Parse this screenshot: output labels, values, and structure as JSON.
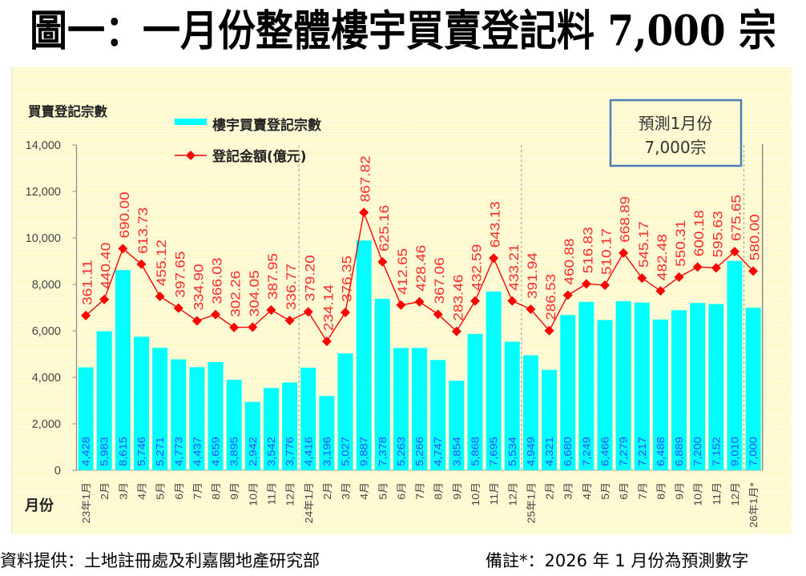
{
  "title": "圖一：一月份整體樓宇買賣登記料 7,000 宗",
  "footer": {
    "source": "資料提供：土地註冊處及利嘉閣地產研究部",
    "note": "備註*：2026 年 1 月份為預測數字"
  },
  "annotation": {
    "line1": "預測1月份",
    "line2": "7,000宗"
  },
  "colors": {
    "bar": "#00ffff",
    "bar_label": "#2f4dff",
    "line": "#ff0000",
    "line_label": "#ff2a2a",
    "annotation_border": "#4a7ebb",
    "axis": "#8a8a8a"
  },
  "chart_data": {
    "type": "bar",
    "title": "圖一：一月份整體樓宇買賣登記料 7,000 宗",
    "ylabel": "買賣登記宗數",
    "xlabel": "月份",
    "ylim": [
      0,
      14000
    ],
    "yticks": [
      0,
      2000,
      4000,
      6000,
      8000,
      10000,
      12000,
      14000
    ],
    "ytick_labels": [
      "0",
      "2,000",
      "4,000",
      "6,000",
      "8,000",
      "10,000",
      "12,000",
      "14,000"
    ],
    "y2lim": [
      -400,
      1200
    ],
    "y2_axis_visible": false,
    "grid": false,
    "legend": "top-left",
    "year_dividers_before": [
      "24年1月",
      "25年1月",
      "26年1月*"
    ],
    "categories": [
      "23年1月",
      "2月",
      "3月",
      "4月",
      "5月",
      "6月",
      "7月",
      "8月",
      "9月",
      "10月",
      "11月",
      "12月",
      "24年1月",
      "2月",
      "3月",
      "4月",
      "5月",
      "6月",
      "7月",
      "8月",
      "9月",
      "10月",
      "11月",
      "12月",
      "25年1月",
      "2月",
      "3月",
      "4月",
      "5月",
      "6月",
      "7月",
      "8月",
      "9月",
      "10月",
      "11月",
      "12月",
      "26年1月*"
    ],
    "series": [
      {
        "name": "樓宇買賣登記宗數",
        "type": "bar",
        "axis": "primary",
        "values": [
          4428,
          5983,
          8615,
          5746,
          5271,
          4773,
          4437,
          4659,
          3895,
          2942,
          3542,
          3776,
          4416,
          3196,
          5027,
          9887,
          7378,
          5263,
          5266,
          4747,
          3854,
          5868,
          7695,
          5534,
          4949,
          4321,
          6680,
          7249,
          6466,
          7279,
          7217,
          6488,
          6889,
          7200,
          7152,
          9010,
          7000
        ]
      },
      {
        "name": "登記金額(億元)",
        "type": "line",
        "axis": "secondary",
        "marker": "diamond",
        "values": [
          361.11,
          440.4,
          690.0,
          613.73,
          455.12,
          397.65,
          334.9,
          366.03,
          302.26,
          304.05,
          387.95,
          336.77,
          379.2,
          234.14,
          376.35,
          867.82,
          625.16,
          412.65,
          428.46,
          367.06,
          283.46,
          432.59,
          643.13,
          433.21,
          391.94,
          286.53,
          460.88,
          516.83,
          510.17,
          668.89,
          545.17,
          482.48,
          550.31,
          600.18,
          595.63,
          675.65,
          580.0
        ]
      }
    ]
  }
}
